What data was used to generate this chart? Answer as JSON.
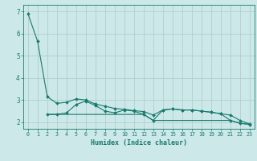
{
  "xlabel": "Humidex (Indice chaleur)",
  "bg_color": "#cce8e8",
  "grid_color": "#b0d0d0",
  "line_color": "#1a7a6e",
  "xlim": [
    -0.5,
    23.5
  ],
  "ylim": [
    1.7,
    7.3
  ],
  "yticks": [
    2,
    3,
    4,
    5,
    6,
    7
  ],
  "xticks": [
    0,
    1,
    2,
    3,
    4,
    5,
    6,
    7,
    8,
    9,
    10,
    11,
    12,
    13,
    14,
    15,
    16,
    17,
    18,
    19,
    20,
    21,
    22,
    23
  ],
  "line_main_x": [
    0,
    1,
    2,
    3,
    4,
    5,
    6,
    7,
    8,
    9,
    10,
    11,
    12,
    13,
    14,
    15,
    16,
    17,
    18,
    19,
    20,
    21,
    22,
    23
  ],
  "line_main_y": [
    6.9,
    5.65,
    3.15,
    2.85,
    2.9,
    3.05,
    3.0,
    2.82,
    2.72,
    2.62,
    2.58,
    2.52,
    2.48,
    2.32,
    2.55,
    2.6,
    2.55,
    2.55,
    2.5,
    2.45,
    2.38,
    2.32,
    2.08,
    1.92
  ],
  "line_mid_x": [
    2,
    3,
    4,
    5,
    6,
    7,
    8,
    9,
    10,
    11,
    12,
    13,
    14,
    15,
    16,
    17,
    18,
    19,
    20,
    21,
    22,
    23
  ],
  "line_mid_y": [
    2.35,
    2.35,
    2.42,
    2.8,
    2.95,
    2.75,
    2.5,
    2.42,
    2.55,
    2.5,
    2.35,
    2.08,
    2.55,
    2.6,
    2.55,
    2.55,
    2.5,
    2.45,
    2.38,
    2.08,
    1.95,
    1.9
  ],
  "line_low_x": [
    2,
    3,
    4,
    5,
    6,
    7,
    8,
    9,
    10,
    11,
    12,
    13,
    14,
    15,
    16,
    17,
    18,
    19,
    20,
    21,
    22,
    23
  ],
  "line_low_y": [
    2.35,
    2.35,
    2.35,
    2.35,
    2.35,
    2.35,
    2.35,
    2.35,
    2.35,
    2.35,
    2.35,
    2.08,
    2.08,
    2.08,
    2.08,
    2.08,
    2.08,
    2.08,
    2.08,
    2.08,
    1.95,
    1.9
  ]
}
